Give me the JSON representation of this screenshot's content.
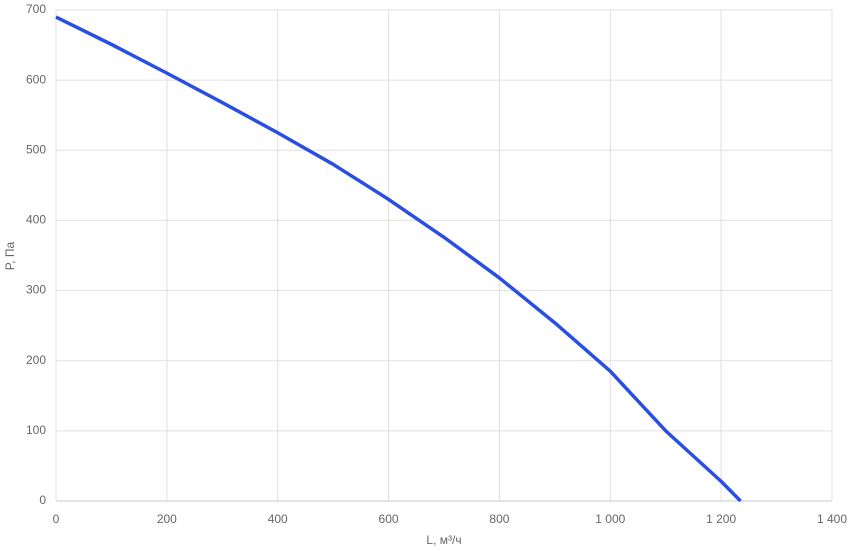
{
  "chart_data": {
    "type": "line",
    "x_label": "L, м³/ч",
    "y_label": "P, Па",
    "x": [
      0,
      100,
      200,
      300,
      400,
      500,
      600,
      700,
      800,
      900,
      1000,
      1100,
      1200,
      1235
    ],
    "series": [
      {
        "color": "#2a4fe0",
        "values": [
          690,
          651,
          610,
          568,
          525,
          480,
          430,
          376,
          318,
          254,
          185,
          100,
          28,
          0
        ]
      }
    ],
    "xlim": [
      0,
      1400
    ],
    "xticks": [
      0,
      200,
      400,
      600,
      800,
      {
        "value": 1000,
        "label": "1 000"
      },
      {
        "value": 1200,
        "label": "1 200"
      },
      {
        "value": 1400,
        "label": "1 400"
      }
    ],
    "ylim": [
      0,
      700
    ],
    "yticks": [
      0,
      100,
      200,
      300,
      400,
      500,
      600,
      700
    ],
    "grid": true
  }
}
